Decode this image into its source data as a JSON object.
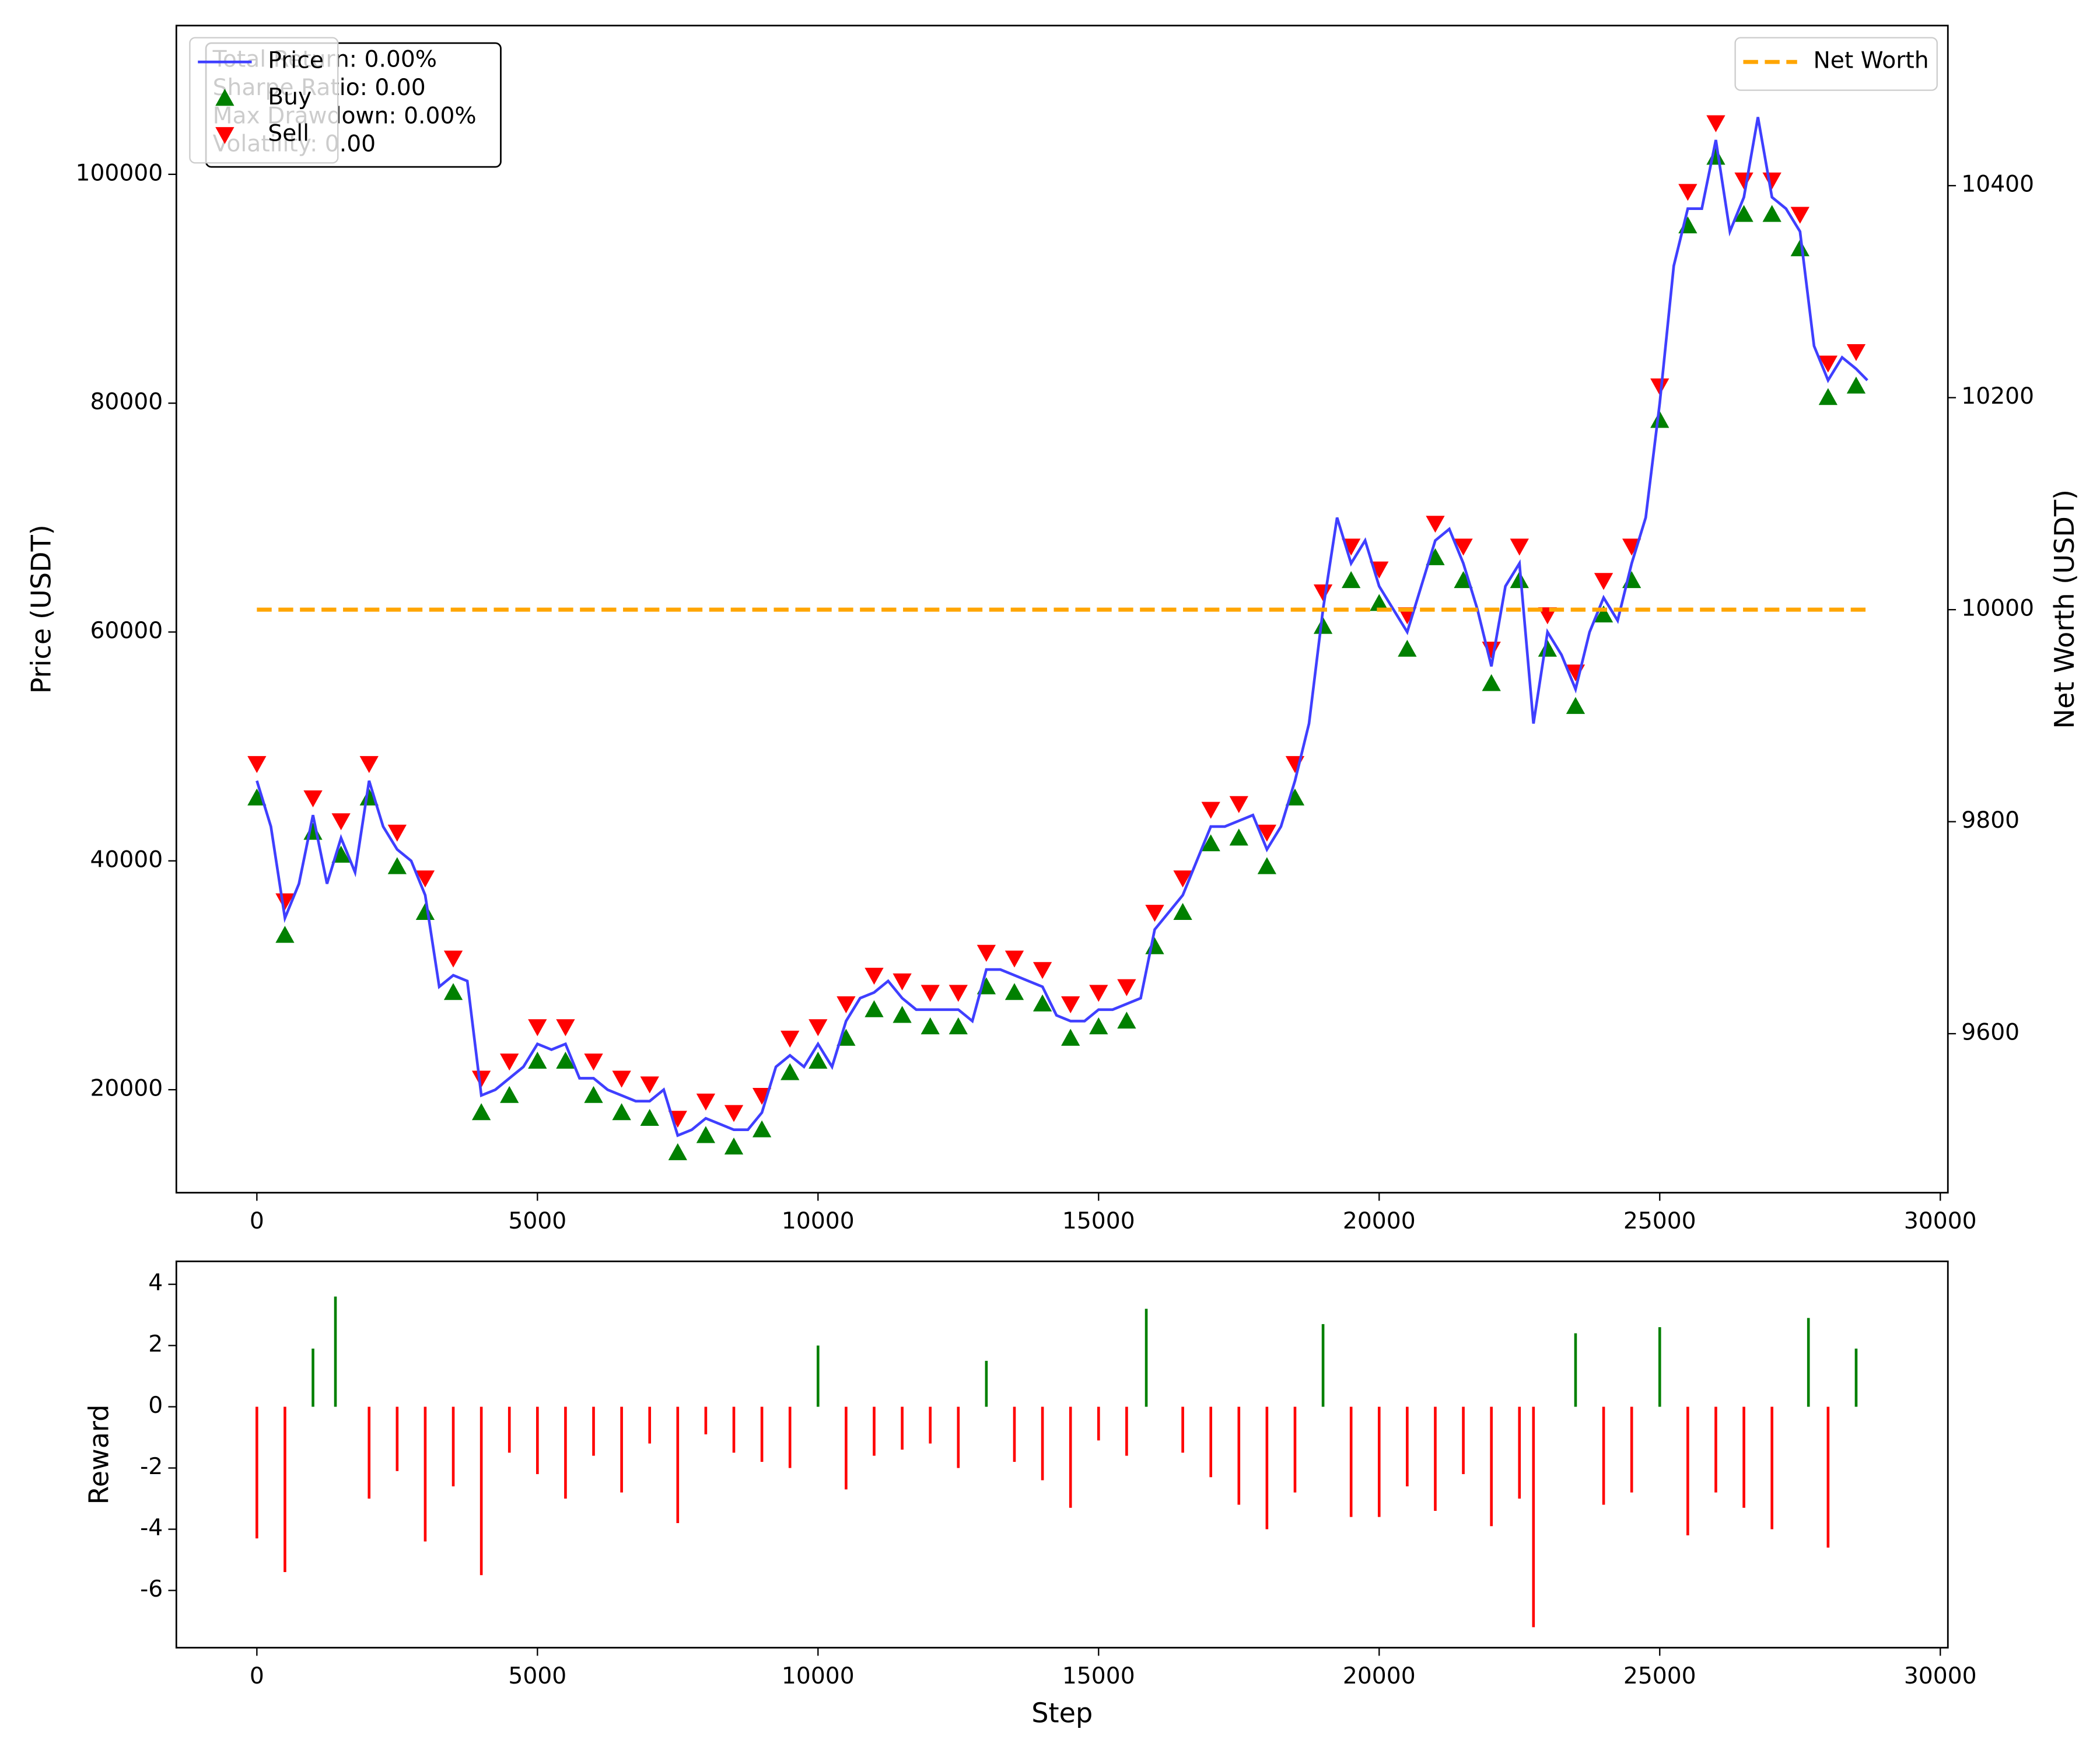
{
  "chart_data": [
    {
      "type": "line",
      "ylabel": "Price (USDT)",
      "y2label": "Net Worth (USDT)",
      "x": [
        0,
        250,
        500,
        750,
        1000,
        1250,
        1500,
        1750,
        2000,
        2250,
        2500,
        2750,
        3000,
        3250,
        3500,
        3750,
        4000,
        4250,
        4500,
        4750,
        5000,
        5250,
        5500,
        5750,
        6000,
        6250,
        6500,
        6750,
        7000,
        7250,
        7500,
        7750,
        8000,
        8250,
        8500,
        8750,
        9000,
        9250,
        9500,
        9750,
        10000,
        10250,
        10500,
        10750,
        11000,
        11250,
        11500,
        11750,
        12000,
        12250,
        12500,
        12750,
        13000,
        13250,
        13500,
        13750,
        14000,
        14250,
        14500,
        14750,
        15000,
        15250,
        15500,
        15750,
        16000,
        16250,
        16500,
        16750,
        17000,
        17250,
        17500,
        17750,
        18000,
        18250,
        18500,
        18750,
        19000,
        19250,
        19500,
        19750,
        20000,
        20250,
        20500,
        20750,
        21000,
        21250,
        21500,
        21750,
        22000,
        22250,
        22500,
        22750,
        23000,
        23250,
        23500,
        23750,
        24000,
        24250,
        24500,
        24750,
        25000,
        25250,
        25500,
        25750,
        26000,
        26250,
        26500,
        26750,
        27000,
        27250,
        27500,
        27750,
        28000,
        28250,
        28500,
        28700
      ],
      "series": [
        {
          "name": "Price",
          "type": "line",
          "color": "#3f3fff",
          "values": [
            47000,
            43000,
            35000,
            38000,
            44000,
            38000,
            42000,
            39000,
            47000,
            43000,
            41000,
            40000,
            37000,
            29000,
            30000,
            29500,
            19500,
            20000,
            21000,
            22000,
            24000,
            23500,
            24000,
            21000,
            21000,
            20000,
            19500,
            19000,
            19000,
            20000,
            16000,
            16500,
            17500,
            17000,
            16500,
            16500,
            18000,
            22000,
            23000,
            22000,
            24000,
            22000,
            26000,
            28000,
            28500,
            29500,
            28000,
            27000,
            27000,
            27000,
            27000,
            26000,
            30500,
            30500,
            30000,
            29500,
            29000,
            26500,
            26000,
            26000,
            27000,
            27000,
            27500,
            28000,
            34000,
            35500,
            37000,
            40000,
            43000,
            43000,
            43500,
            44000,
            41000,
            43000,
            47000,
            52000,
            62000,
            70000,
            66000,
            68000,
            64000,
            62000,
            60000,
            64000,
            68000,
            69000,
            66000,
            62000,
            57000,
            64000,
            66000,
            52000,
            60000,
            58000,
            55000,
            60000,
            63000,
            61000,
            66000,
            70000,
            80000,
            92000,
            97000,
            97000,
            103000,
            95000,
            98000,
            105000,
            98000,
            97000,
            95000,
            85000,
            82000,
            84000,
            83000,
            82000
          ]
        },
        {
          "name": "Buy",
          "type": "scatter",
          "marker": "triangle-up",
          "color": "#008000",
          "x": [
            0,
            500,
            1000,
            1500,
            2000,
            2500,
            3000,
            3500,
            4000,
            4500,
            5000,
            5500,
            6000,
            6500,
            7000,
            7500,
            8000,
            8500,
            9000,
            9500,
            10000,
            10500,
            11000,
            11500,
            12000,
            12500,
            13000,
            13500,
            14000,
            14500,
            15000,
            15500,
            16000,
            16500,
            17000,
            17500,
            18000,
            18500,
            19000,
            19500,
            20000,
            20500,
            21000,
            21500,
            22000,
            22500,
            23000,
            23500,
            24000,
            24500,
            25000,
            25500,
            26000,
            26500,
            27000,
            27500,
            28000,
            28500
          ],
          "values": [
            45500,
            33500,
            42500,
            40500,
            45500,
            39500,
            35500,
            28500,
            18000,
            19500,
            22500,
            22500,
            19500,
            18000,
            17500,
            14500,
            16000,
            15000,
            16500,
            21500,
            22500,
            24500,
            27000,
            26500,
            25500,
            25500,
            29000,
            28500,
            27500,
            24500,
            25500,
            26000,
            32500,
            35500,
            41500,
            42000,
            39500,
            45500,
            60500,
            64500,
            62500,
            58500,
            66500,
            64500,
            55500,
            64500,
            58500,
            53500,
            61500,
            64500,
            78500,
            95500,
            101500,
            96500,
            96500,
            93500,
            80500,
            81500
          ]
        },
        {
          "name": "Sell",
          "type": "scatter",
          "marker": "triangle-down",
          "color": "#ff0000",
          "x": [
            0,
            500,
            1000,
            1500,
            2000,
            2500,
            3000,
            3500,
            4000,
            4500,
            5000,
            5500,
            6000,
            6500,
            7000,
            7500,
            8000,
            8500,
            9000,
            9500,
            10000,
            10500,
            11000,
            11500,
            12000,
            12500,
            13000,
            13500,
            14000,
            14500,
            15000,
            15500,
            16000,
            16500,
            17000,
            17500,
            18000,
            18500,
            19000,
            19500,
            20000,
            20500,
            21000,
            21500,
            22000,
            22500,
            23000,
            23500,
            24000,
            24500,
            25000,
            25500,
            26000,
            26500,
            27000,
            27500,
            28000,
            28500
          ],
          "values": [
            48500,
            36500,
            45500,
            43500,
            48500,
            42500,
            38500,
            31500,
            21000,
            22500,
            25500,
            25500,
            22500,
            21000,
            20500,
            17500,
            19000,
            18000,
            19500,
            24500,
            25500,
            27500,
            30000,
            29500,
            28500,
            28500,
            32000,
            31500,
            30500,
            27500,
            28500,
            29000,
            35500,
            38500,
            44500,
            45000,
            42500,
            48500,
            63500,
            67500,
            65500,
            61500,
            69500,
            67500,
            58500,
            67500,
            61500,
            56500,
            64500,
            67500,
            81500,
            98500,
            104500,
            99500,
            99500,
            96500,
            83500,
            84500
          ]
        },
        {
          "name": "Net Worth",
          "type": "line",
          "axis": "y2",
          "linestyle": "dashed",
          "color": "#ffa500",
          "x": [
            0,
            28700
          ],
          "values": [
            10000,
            10000
          ]
        }
      ],
      "xlim": [
        -1435,
        30135
      ],
      "xticks": [
        0,
        5000,
        10000,
        15000,
        20000,
        25000,
        30000
      ],
      "ylim": [
        11000,
        113000
      ],
      "yticks": [
        20000,
        40000,
        60000,
        80000,
        100000
      ],
      "y2lim": [
        9450,
        10551
      ],
      "y2ticks": [
        9600,
        9800,
        10000,
        10200,
        10400
      ],
      "legend": "upper left",
      "legend2": "upper right",
      "stats": [
        "Total Return: 0.00%",
        "Sharpe Ratio: 0.00",
        "Max Drawdown: 0.00%",
        "Volatility: 0.00"
      ]
    },
    {
      "type": "bar",
      "xlabel": "Step",
      "ylabel": "Reward",
      "x": [
        0,
        500,
        1000,
        1400,
        2000,
        2500,
        3000,
        3500,
        4000,
        4500,
        5000,
        5500,
        6000,
        6500,
        7000,
        7500,
        8000,
        8500,
        9000,
        9500,
        10000,
        10500,
        11000,
        11500,
        12000,
        12500,
        13000,
        13500,
        14000,
        14500,
        15000,
        15500,
        15850,
        16500,
        17000,
        17500,
        18000,
        18500,
        19000,
        19500,
        20000,
        20500,
        21000,
        21500,
        22000,
        22500,
        22750,
        23500,
        24000,
        24500,
        25000,
        25500,
        26000,
        26500,
        27000,
        27650,
        28000,
        28500
      ],
      "values": [
        -4.3,
        -5.4,
        1.9,
        3.6,
        -3.0,
        -2.1,
        -4.4,
        -2.6,
        -5.5,
        -1.5,
        -2.2,
        -3.0,
        -1.6,
        -2.8,
        -1.2,
        -3.8,
        -0.9,
        -1.5,
        -1.8,
        -2.0,
        2.0,
        -2.7,
        -1.6,
        -1.4,
        -1.2,
        -2.0,
        1.5,
        -1.8,
        -2.4,
        -3.3,
        -1.1,
        -1.6,
        3.2,
        -1.5,
        -2.3,
        -3.2,
        -4.0,
        -2.8,
        2.7,
        -3.6,
        -3.6,
        -2.6,
        -3.4,
        -2.2,
        -3.9,
        -3.0,
        -7.2,
        2.4,
        -3.2,
        -2.8,
        2.6,
        -4.2,
        -2.8,
        -3.3,
        -4.0,
        2.9,
        -4.6,
        1.9
      ],
      "colors": {
        "positive": "#008000",
        "negative": "#ff0000"
      },
      "xlim": [
        -1435,
        30135
      ],
      "xticks": [
        0,
        5000,
        10000,
        15000,
        20000,
        25000,
        30000
      ],
      "ylim": [
        -7.87,
        4.75
      ],
      "yticks": [
        -6,
        -4,
        -2,
        0,
        2,
        4
      ]
    }
  ]
}
